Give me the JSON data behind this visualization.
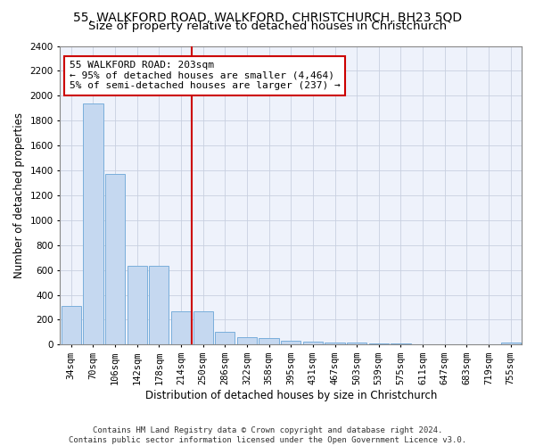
{
  "title_line1": "55, WALKFORD ROAD, WALKFORD, CHRISTCHURCH, BH23 5QD",
  "title_line2": "Size of property relative to detached houses in Christchurch",
  "xlabel": "Distribution of detached houses by size in Christchurch",
  "ylabel": "Number of detached properties",
  "bar_color": "#c5d8f0",
  "bar_edge_color": "#7aaedb",
  "annotation_box_color": "#ffffff",
  "annotation_box_edge_color": "#cc0000",
  "vline_color": "#cc0000",
  "grid_color": "#c8d0e0",
  "background_color": "#ffffff",
  "plot_bg_color": "#eef2fb",
  "categories": [
    "34sqm",
    "70sqm",
    "106sqm",
    "142sqm",
    "178sqm",
    "214sqm",
    "250sqm",
    "286sqm",
    "322sqm",
    "358sqm",
    "395sqm",
    "431sqm",
    "467sqm",
    "503sqm",
    "539sqm",
    "575sqm",
    "611sqm",
    "647sqm",
    "683sqm",
    "719sqm",
    "755sqm"
  ],
  "bar_heights": [
    310,
    1940,
    1370,
    630,
    630,
    270,
    270,
    100,
    60,
    55,
    30,
    25,
    20,
    15,
    10,
    8,
    5,
    3,
    2,
    2,
    20
  ],
  "vline_position": 5.5,
  "annotation_text": "55 WALKFORD ROAD: 203sqm\n← 95% of detached houses are smaller (4,464)\n5% of semi-detached houses are larger (237) →",
  "ylim": [
    0,
    2400
  ],
  "yticks": [
    0,
    200,
    400,
    600,
    800,
    1000,
    1200,
    1400,
    1600,
    1800,
    2000,
    2200,
    2400
  ],
  "footer_line1": "Contains HM Land Registry data © Crown copyright and database right 2024.",
  "footer_line2": "Contains public sector information licensed under the Open Government Licence v3.0.",
  "title_fontsize": 10,
  "subtitle_fontsize": 9.5,
  "axis_label_fontsize": 8.5,
  "tick_fontsize": 7.5,
  "annotation_fontsize": 8,
  "footer_fontsize": 6.5
}
